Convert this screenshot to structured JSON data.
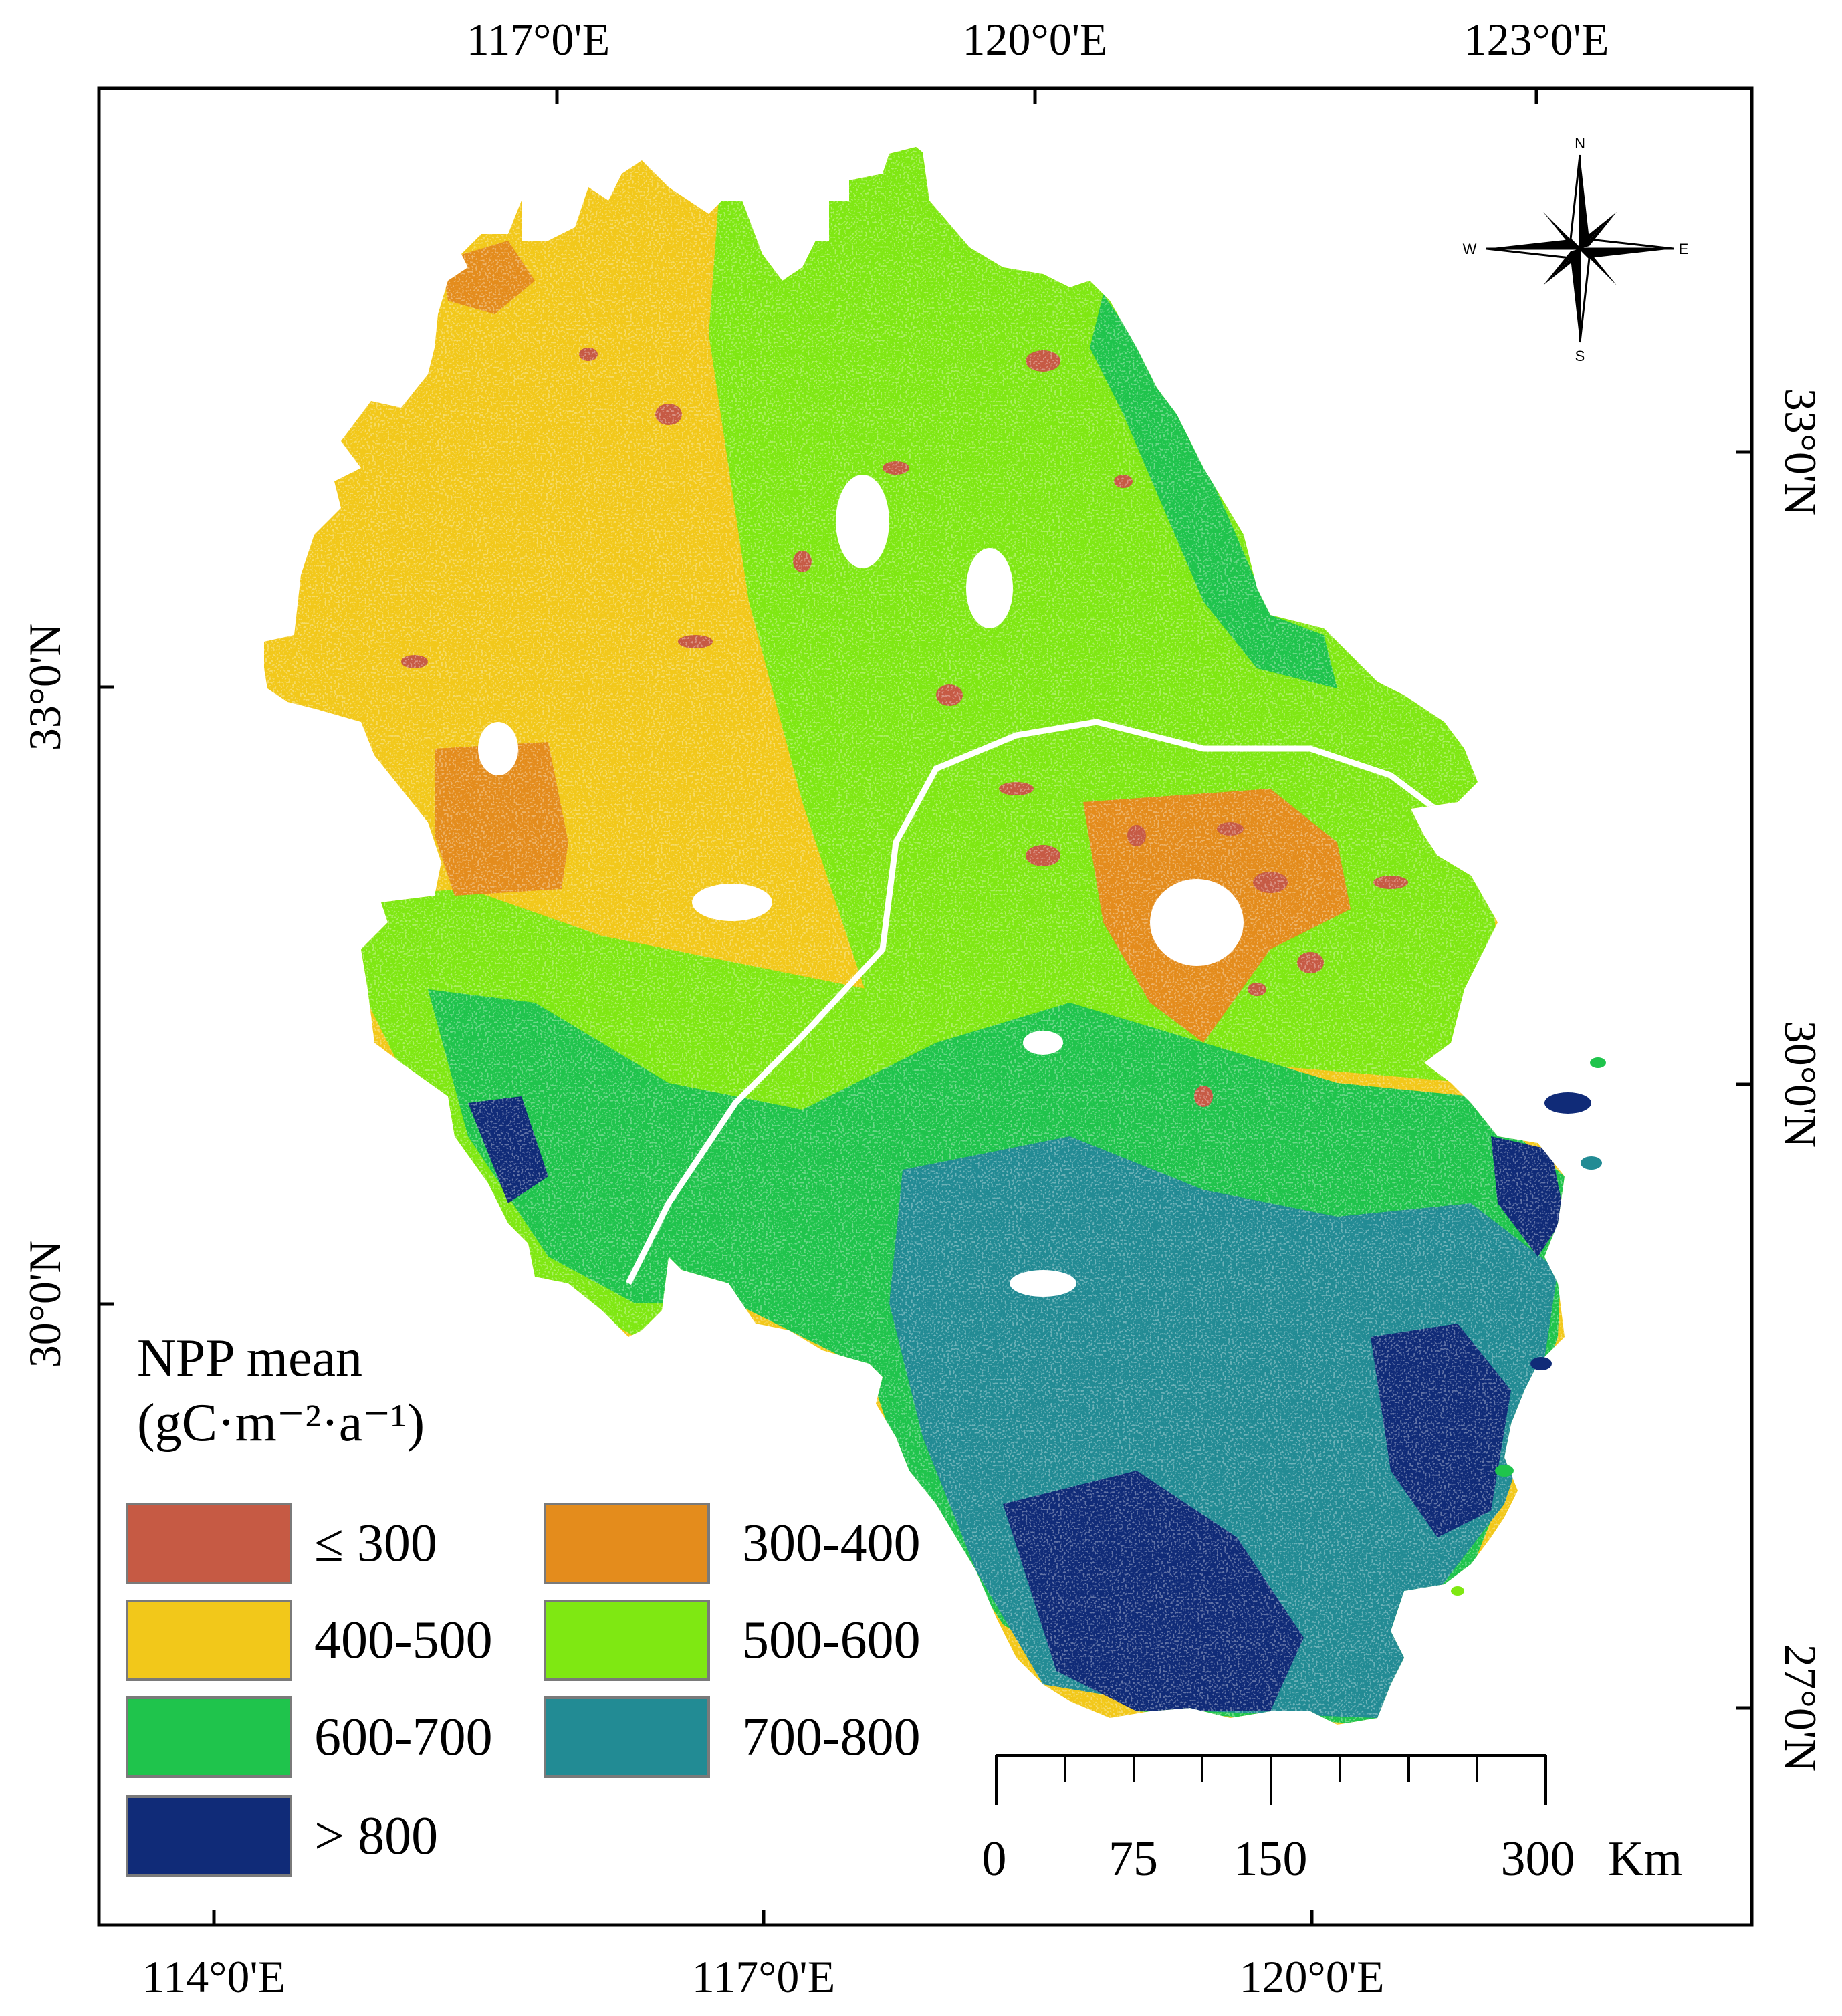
{
  "top_axis_labels": [
    "117°0'E",
    "120°0'E",
    "123°0'E"
  ],
  "bottom_axis_labels": [
    "114°0'E",
    "117°0'E",
    "120°0'E"
  ],
  "left_axis_labels": [
    "33°0'N",
    "30°0'N"
  ],
  "right_axis_labels": [
    "33°0'N",
    "30°0'N",
    "27°0'N"
  ],
  "legend": {
    "title_line1": "NPP mean",
    "title_line2": "(gC·m⁻²·a⁻¹)",
    "items": [
      {
        "label": "≤ 300",
        "color": "#c65a44"
      },
      {
        "label": "300-400",
        "color": "#e48c1c"
      },
      {
        "label": "400-500",
        "color": "#f2c81a"
      },
      {
        "label": "500-600",
        "color": "#7fe812"
      },
      {
        "label": "600-700",
        "color": "#1fc44c"
      },
      {
        "label": "700-800",
        "color": "#228b94"
      },
      {
        "label": "> 800",
        "color": "#102b78"
      }
    ]
  },
  "scale_bar": {
    "labels": [
      "0",
      "75",
      "150",
      "300"
    ],
    "unit": "Km"
  },
  "compass": {
    "n": "N",
    "s": "S",
    "e": "E",
    "w": "W"
  }
}
